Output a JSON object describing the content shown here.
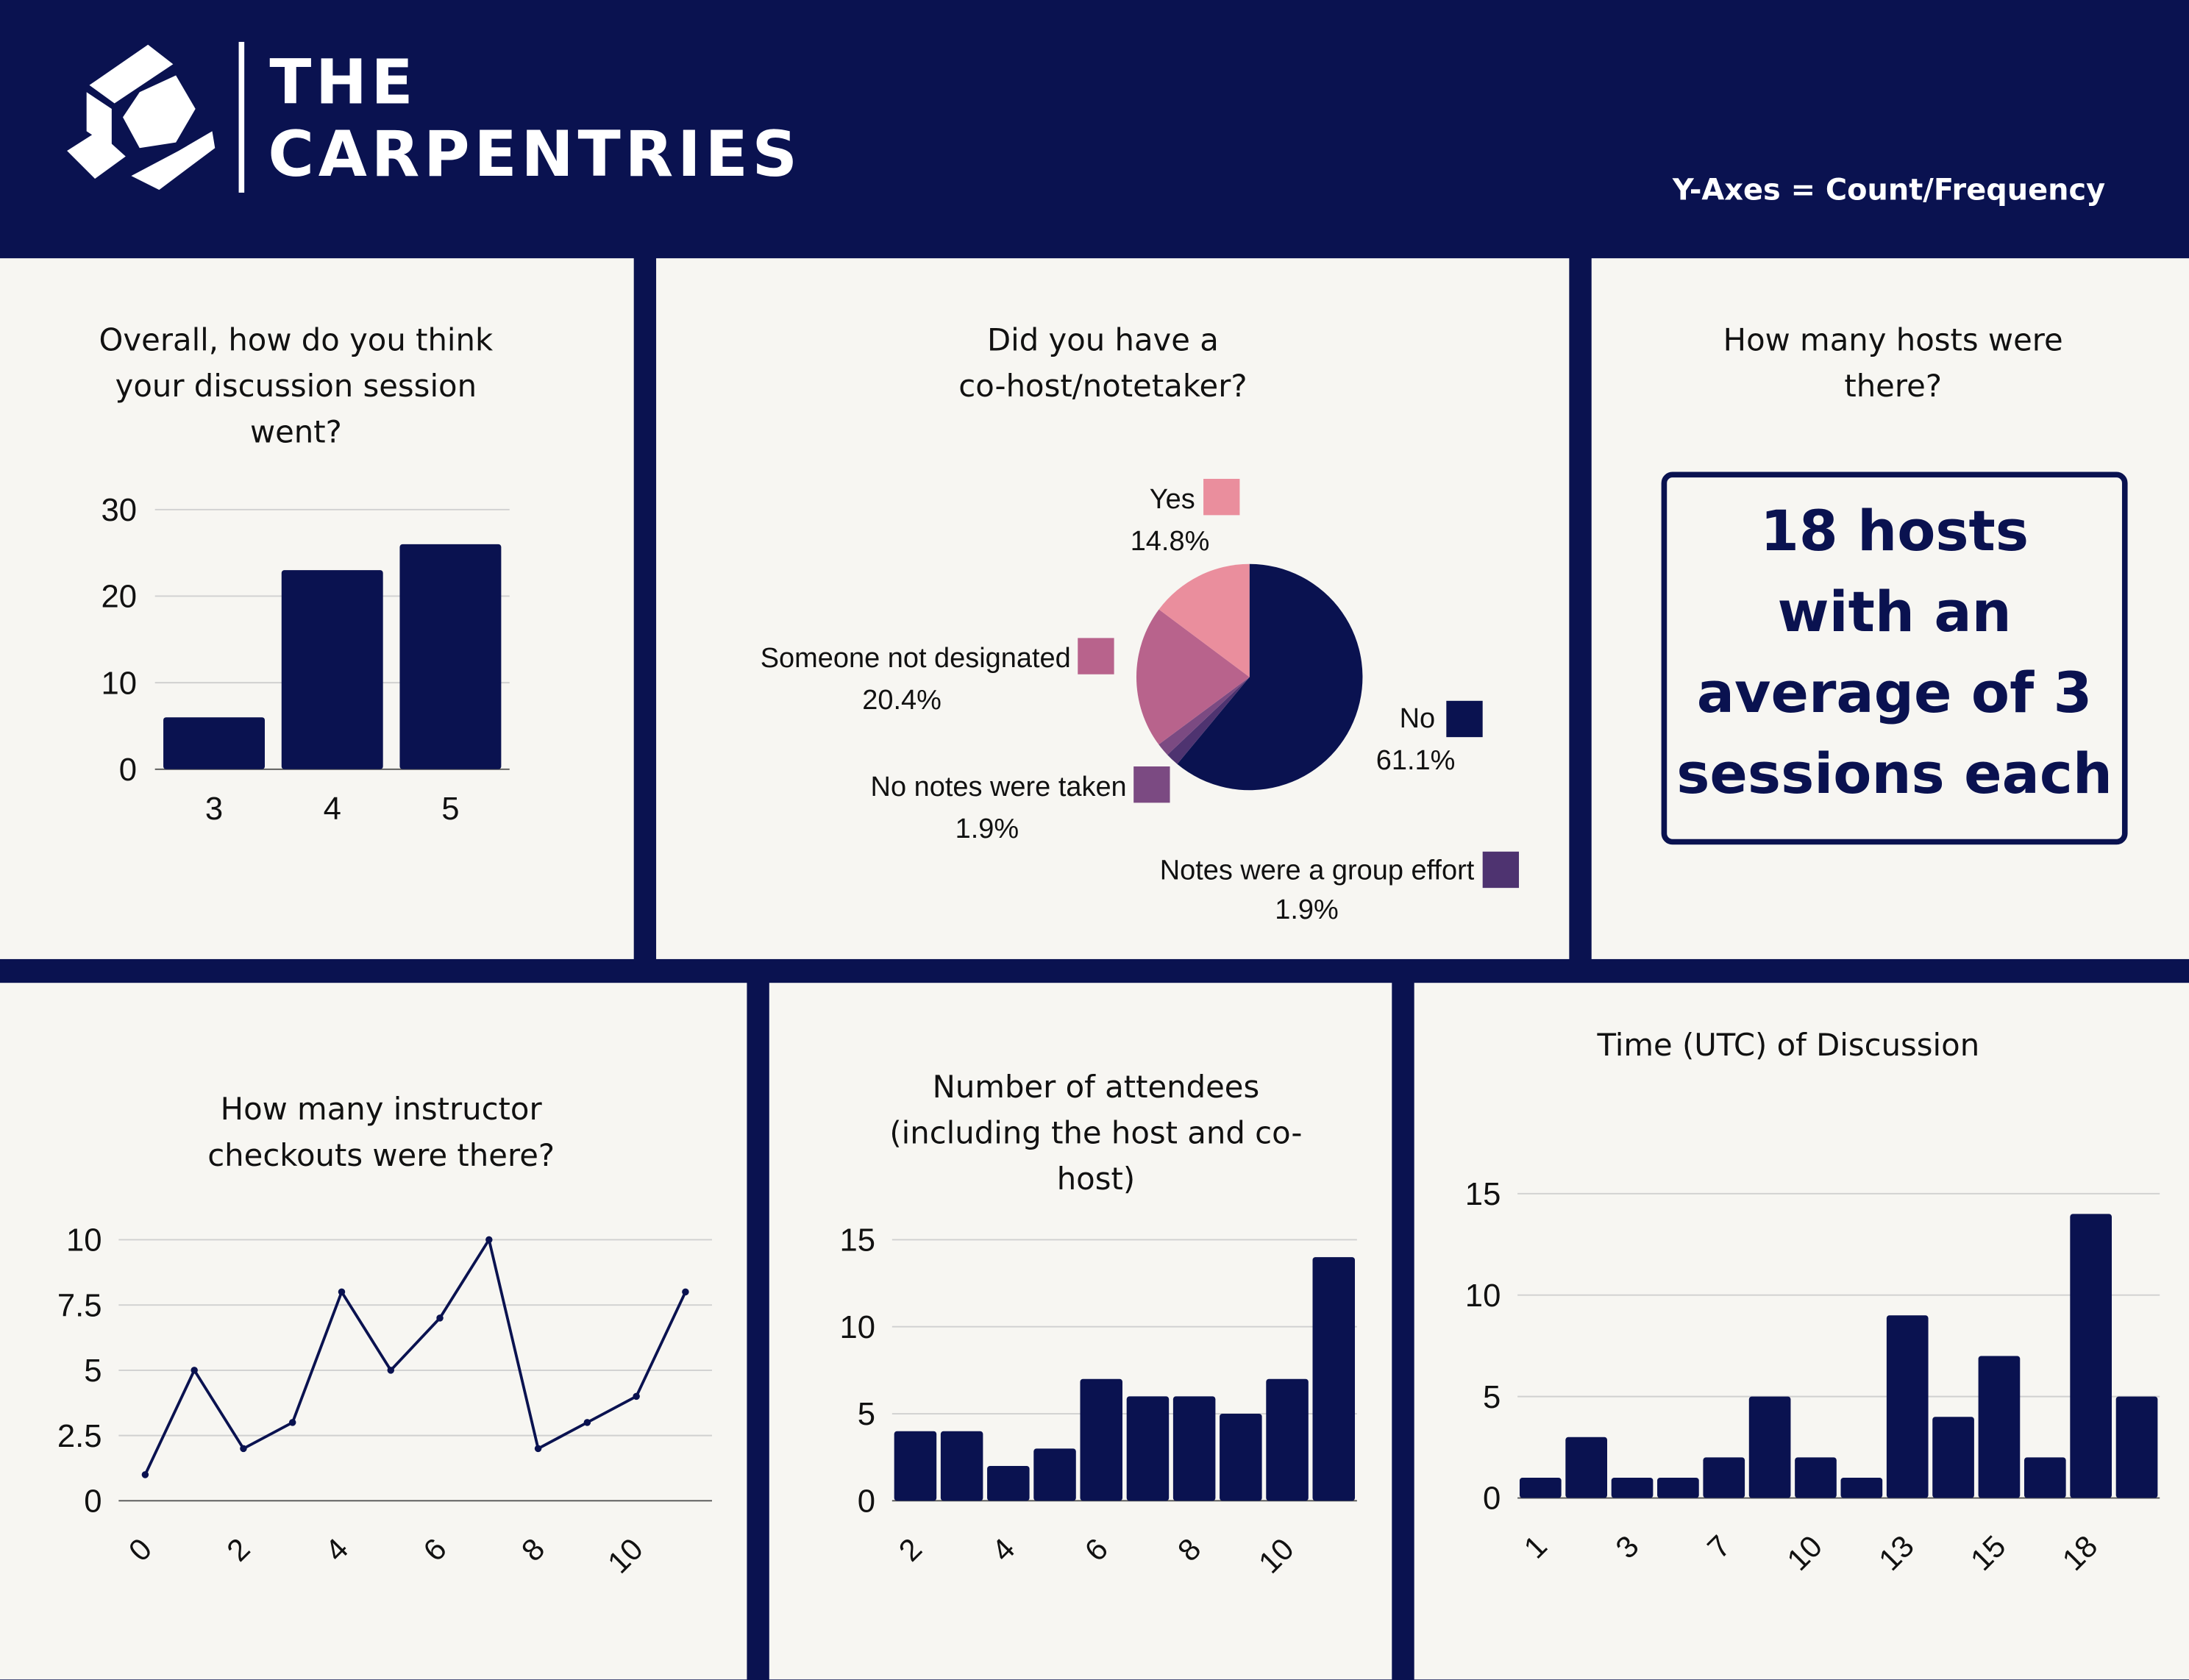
{
  "header": {
    "brand_line1": "THE",
    "brand_line2": "CARPENTRIES",
    "note": "Y-Axes = Count/Frequency",
    "logo_icon": "carpentries-hexagon-logo"
  },
  "colors": {
    "navy": "#0a1250",
    "panel": "#f7f6f2",
    "grid": "#d0d0d0"
  },
  "hosts_card": {
    "title": "How many hosts were\nthere?",
    "text": "18 hosts\nwith an\naverage of 3\nsessions each"
  },
  "chart_data": [
    {
      "type": "bar",
      "title": "Overall, how do you think\nyour discussion session\nwent?",
      "categories": [
        "3",
        "4",
        "5"
      ],
      "values": [
        6,
        23,
        26
      ],
      "yticks": [
        0,
        10,
        20,
        30
      ],
      "ylim": [
        0,
        30
      ],
      "grid": true
    },
    {
      "type": "pie",
      "title": "Did you have a\nco-host/notetaker?",
      "slices": [
        {
          "label": "No",
          "value": 61.1,
          "pct": "61.1%",
          "color": "#0a1250"
        },
        {
          "label": "Notes were a group effort",
          "value": 1.9,
          "pct": "1.9%",
          "color": "#4e3370"
        },
        {
          "label": "No notes were taken",
          "value": 1.9,
          "pct": "1.9%",
          "color": "#7b4a82"
        },
        {
          "label": "Someone not designated",
          "value": 20.4,
          "pct": "20.4%",
          "color": "#b8638c"
        },
        {
          "label": "Yes",
          "value": 14.8,
          "pct": "14.8%",
          "color": "#ea8e9d"
        }
      ]
    },
    {
      "type": "line",
      "title": "How many instructor\ncheckouts were there?",
      "x": [
        0,
        1,
        2,
        3,
        4,
        5,
        6,
        7,
        8,
        9,
        10,
        11
      ],
      "values": [
        1,
        5,
        2,
        3,
        8,
        5,
        7,
        10,
        2,
        3,
        4,
        8
      ],
      "xtick_labels": [
        "0",
        "",
        "2",
        "",
        "4",
        "",
        "6",
        "",
        "8",
        "",
        "10",
        ""
      ],
      "yticks": [
        "0",
        "2.5",
        "5",
        "7.5",
        "10"
      ],
      "ylim": [
        0,
        10
      ],
      "grid": true
    },
    {
      "type": "bar",
      "title": "Number of attendees\n(including the host and co-\nhost)",
      "categories": [
        "2",
        "3",
        "4",
        "5",
        "6",
        "7",
        "8",
        "9",
        "10",
        "11"
      ],
      "xtick_labels": [
        "2",
        "",
        "4",
        "",
        "6",
        "",
        "8",
        "",
        "10",
        ""
      ],
      "values": [
        4,
        4,
        2,
        3,
        7,
        6,
        6,
        5,
        7,
        14
      ],
      "yticks": [
        0,
        5,
        10,
        15
      ],
      "ylim": [
        0,
        15
      ],
      "grid": true
    },
    {
      "type": "bar",
      "title": "Time (UTC) of Discussion",
      "xtick_labels": [
        "1",
        "",
        "3",
        "",
        "7",
        "",
        "10",
        "",
        "13",
        "",
        "15",
        "",
        "18",
        ""
      ],
      "values": [
        1,
        3,
        1,
        1,
        2,
        5,
        2,
        1,
        9,
        4,
        7,
        2,
        14,
        5
      ],
      "yticks": [
        0,
        5,
        10,
        15
      ],
      "ylim": [
        0,
        15
      ],
      "grid": true
    }
  ]
}
